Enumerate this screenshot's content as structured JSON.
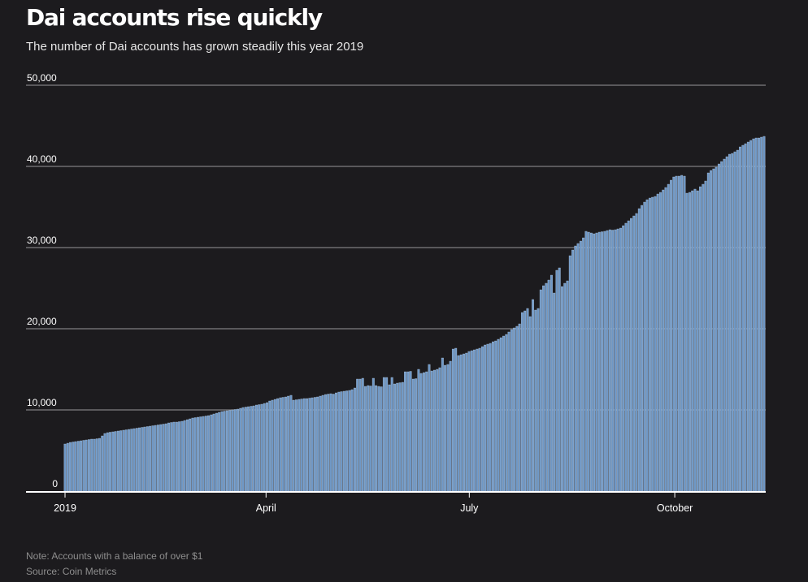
{
  "title": "Dai accounts rise quickly",
  "subtitle": "The number of Dai accounts has grown steadily this year 2019",
  "note": "Note: Accounts with a balance of over $1",
  "source": "Source: Coin Metrics",
  "colors": {
    "background": "#1c1b1e",
    "bar_fill": "#6f98c6",
    "bar_edge": "#b4cbe6",
    "grid": "#6e6e70",
    "text": "#ffffff",
    "muted": "#8e8e8e"
  },
  "chart_data": {
    "type": "bar",
    "title": "Dai accounts rise quickly",
    "xlabel": "",
    "ylabel": "",
    "ylim": [
      0,
      50000
    ],
    "yticks": [
      0,
      10000,
      20000,
      30000,
      40000,
      50000
    ],
    "ytick_labels": [
      "0",
      "10,000",
      "20,000",
      "30,000",
      "40,000",
      "50,000"
    ],
    "xtick_labels": [
      {
        "label": "2019",
        "date": "2019-01-01"
      },
      {
        "label": "April",
        "date": "2019-04-01"
      },
      {
        "label": "July",
        "date": "2019-07-01"
      },
      {
        "label": "October",
        "date": "2019-10-01"
      }
    ],
    "grid": true,
    "legend": "none",
    "start_date": "2019-01-01",
    "end_date": "2019-11-10",
    "series": [
      {
        "values": [
          5800,
          5900,
          6000,
          6050,
          6100,
          6150,
          6200,
          6250,
          6300,
          6350,
          6400,
          6400,
          6450,
          6500,
          6800,
          7100,
          7200,
          7250,
          7300,
          7350,
          7400,
          7450,
          7500,
          7550,
          7600,
          7650,
          7700,
          7750,
          7800,
          7850,
          7900,
          7950,
          8000,
          8050,
          8100,
          8150,
          8200,
          8250,
          8300,
          8400,
          8450,
          8500,
          8500,
          8550,
          8600,
          8700,
          8800,
          8900,
          9000,
          9050,
          9100,
          9150,
          9200,
          9250,
          9300,
          9400,
          9500,
          9600,
          9700,
          9800,
          9850,
          9900,
          9950,
          10000,
          10050,
          10100,
          10200,
          10300,
          10350,
          10400,
          10450,
          10500,
          10600,
          10650,
          10700,
          10800,
          10900,
          11100,
          11200,
          11300,
          11400,
          11500,
          11550,
          11600,
          11700,
          11800,
          11200,
          11250,
          11300,
          11350,
          11400,
          11400,
          11450,
          11500,
          11550,
          11600,
          11700,
          11800,
          11900,
          11950,
          12000,
          11950,
          12100,
          12200,
          12250,
          12300,
          12350,
          12400,
          12500,
          12700,
          13800,
          13800,
          13900,
          12900,
          13000,
          12950,
          13900,
          13000,
          12900,
          12850,
          14000,
          14000,
          13100,
          14000,
          13200,
          13300,
          13350,
          13400,
          14700,
          14700,
          14750,
          13800,
          13850,
          15000,
          14500,
          14600,
          14700,
          15600,
          14800,
          14900,
          15000,
          15200,
          16400,
          15500,
          15600,
          16000,
          17500,
          17600,
          16700,
          16800,
          16900,
          17000,
          17200,
          17300,
          17400,
          17500,
          17600,
          17800,
          18000,
          18100,
          18200,
          18400,
          18500,
          18700,
          18900,
          19100,
          19300,
          19600,
          19900,
          20100,
          20300,
          20600,
          22000,
          22200,
          22500,
          21500,
          23600,
          22300,
          22500,
          24800,
          25300,
          25600,
          26000,
          26600,
          24400,
          27200,
          27500,
          25200,
          25600,
          25900,
          29000,
          29700,
          30200,
          30500,
          30800,
          31200,
          32000,
          31900,
          31800,
          31700,
          31800,
          31900,
          31950,
          32000,
          32100,
          32200,
          32150,
          32200,
          32300,
          32400,
          32700,
          33000,
          33300,
          33600,
          33900,
          34200,
          34800,
          35200,
          35600,
          35900,
          36100,
          36200,
          36300,
          36600,
          36800,
          37100,
          37400,
          37800,
          38300,
          38700,
          38800,
          38800,
          38900,
          38800,
          36700,
          36800,
          37000,
          37200,
          37000,
          37500,
          37800,
          38200,
          39200,
          39500,
          39700,
          39900,
          40300,
          40600,
          40900,
          41200,
          41500,
          41600,
          41800,
          42000,
          42400,
          42600,
          42800,
          43000,
          43200,
          43400,
          43500,
          43500,
          43600,
          43700
        ]
      }
    ]
  }
}
